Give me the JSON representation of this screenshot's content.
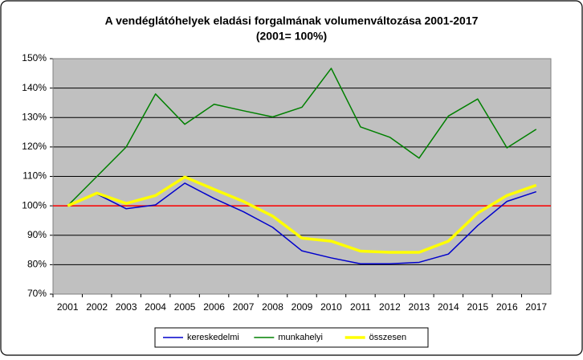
{
  "chart_data": {
    "type": "line",
    "title": "A vendéglátóhelyek eladási forgalmának volumenváltozása 2001-2017",
    "subtitle": "(2001= 100%)",
    "categories": [
      "2001",
      "2002",
      "2003",
      "2004",
      "2005",
      "2006",
      "2007",
      "2008",
      "2009",
      "2010",
      "2011",
      "2012",
      "2013",
      "2014",
      "2015",
      "2016",
      "2017"
    ],
    "series": [
      {
        "name": "kereskedelmi",
        "color": "#0000cc",
        "width": 1.5,
        "values": [
          100,
          104,
          99,
          100.3,
          107.7,
          102.5,
          98,
          92.7,
          84.7,
          82.3,
          80.3,
          80.3,
          80.8,
          83.6,
          93.3,
          101.5,
          104.8
        ]
      },
      {
        "name": "munkahelyi",
        "color": "#008000",
        "width": 1.5,
        "values": [
          100,
          110,
          120,
          138,
          127.7,
          134.5,
          132.3,
          130.2,
          133.5,
          146.7,
          126.8,
          123.3,
          116.2,
          130.5,
          136.3,
          119.7,
          126
        ]
      },
      {
        "name": "összesen",
        "color": "#ffff00",
        "width": 3.5,
        "values": [
          100,
          104.3,
          100.8,
          103.5,
          109.8,
          105.6,
          101.5,
          96.5,
          89,
          88,
          84.6,
          84.2,
          84.2,
          88,
          97.5,
          103.5,
          107
        ]
      }
    ],
    "reference_line": {
      "value": 100,
      "color": "#ff0000"
    },
    "ylim": [
      70,
      150
    ],
    "yticks": [
      {
        "value": 70,
        "label": "70%"
      },
      {
        "value": 80,
        "label": "80%"
      },
      {
        "value": 90,
        "label": "90%"
      },
      {
        "value": 100,
        "label": "100%"
      },
      {
        "value": 110,
        "label": "110%"
      },
      {
        "value": 120,
        "label": "120%"
      },
      {
        "value": 130,
        "label": "130%"
      },
      {
        "value": 140,
        "label": "140%"
      },
      {
        "value": 150,
        "label": "150%"
      }
    ],
    "grid": true,
    "legend": "bottom"
  }
}
